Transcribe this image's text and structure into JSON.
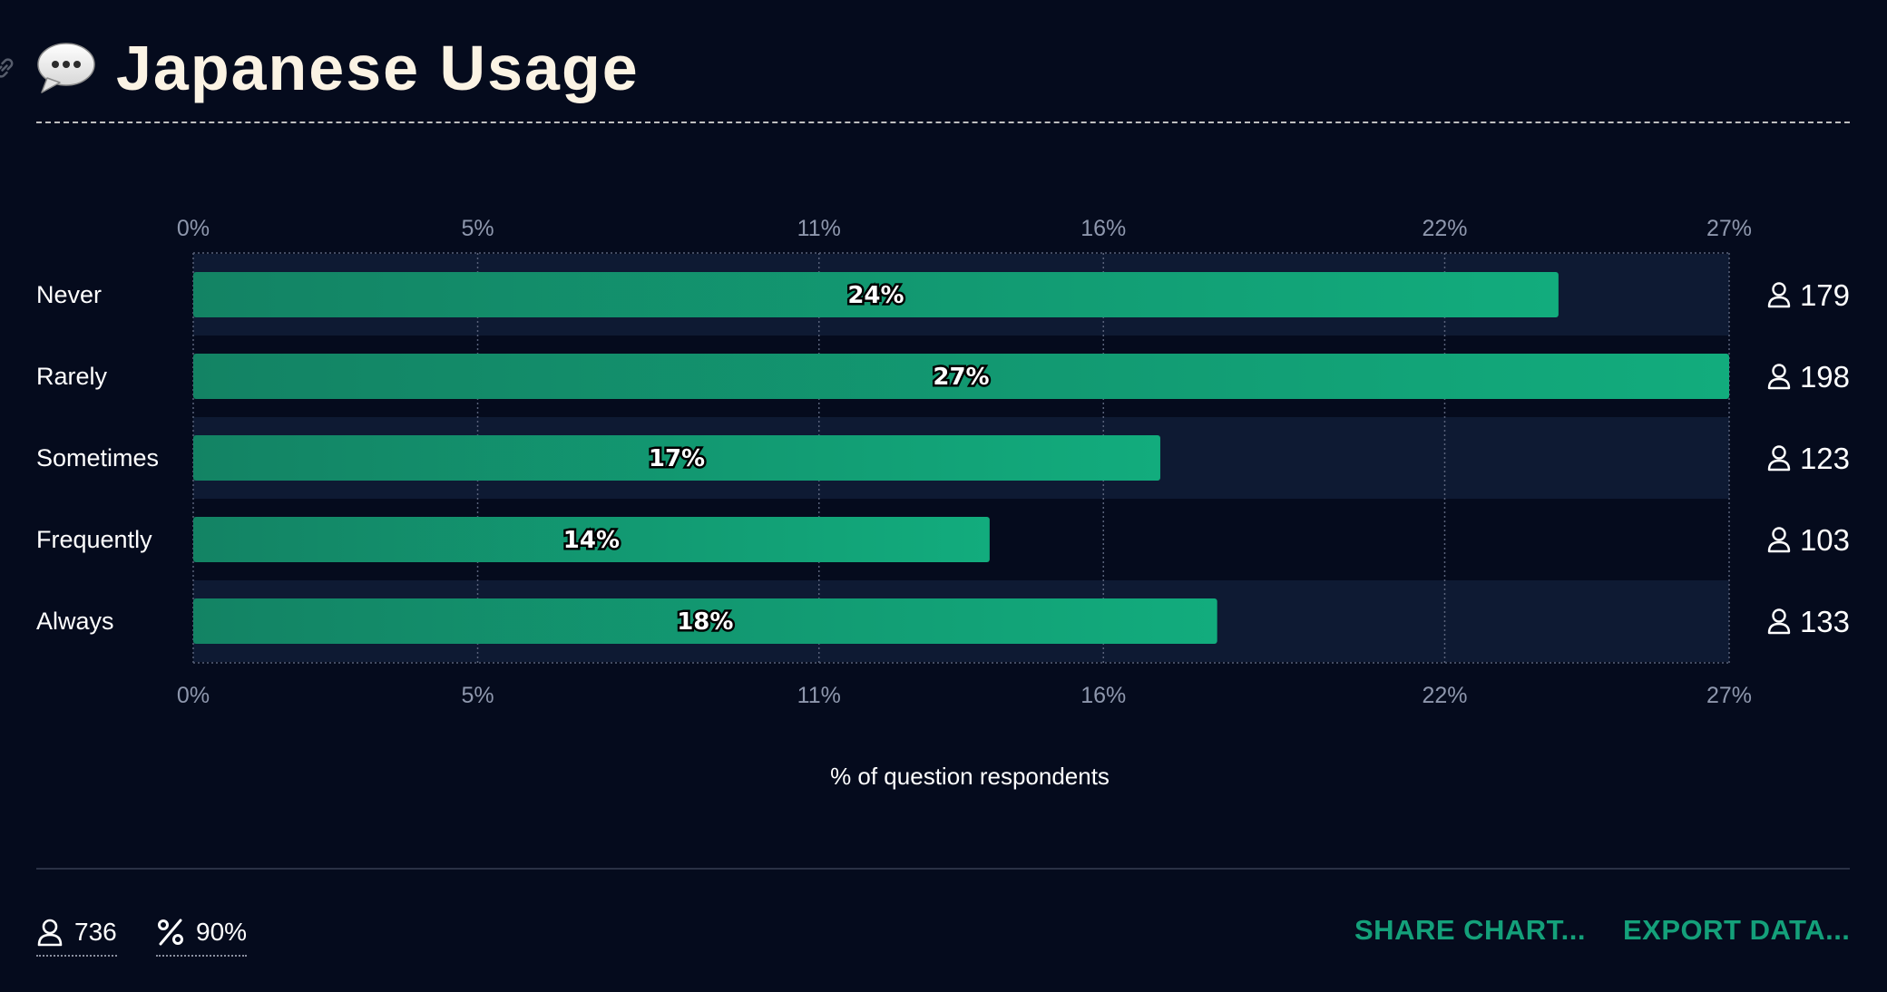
{
  "title": "Japanese Usage",
  "chart_data": {
    "type": "bar",
    "orientation": "horizontal",
    "title": "Japanese Usage",
    "categories": [
      "Never",
      "Rarely",
      "Sometimes",
      "Frequently",
      "Always"
    ],
    "values": [
      24,
      27,
      17,
      14,
      18
    ],
    "value_labels": [
      "24%",
      "27%",
      "17%",
      "14%",
      "18%"
    ],
    "counts": [
      "179",
      "198",
      "123",
      "103",
      "133"
    ],
    "xlabel": "% of question respondents",
    "ylabel": "",
    "xlim": [
      0,
      27
    ],
    "x_ticks": [
      0,
      5,
      11,
      16,
      22,
      27
    ],
    "x_tick_labels": [
      "0%",
      "5%",
      "11%",
      "16%",
      "22%",
      "27%"
    ],
    "grid": true,
    "bar_color_start": "#138364",
    "bar_color_end": "#12ac7d",
    "band_color": "#0e1a33"
  },
  "footer": {
    "respondents": "736",
    "percent": "90%",
    "share_label": "SHARE CHART...",
    "export_label": "EXPORT DATA..."
  },
  "colors": {
    "background": "#050b1d",
    "accent": "#14a07a",
    "title": "#fbf3e4"
  },
  "icons": {
    "link": "link-icon",
    "title": "speech-bubble-icon",
    "person": "person-icon",
    "percent": "percent-icon"
  }
}
